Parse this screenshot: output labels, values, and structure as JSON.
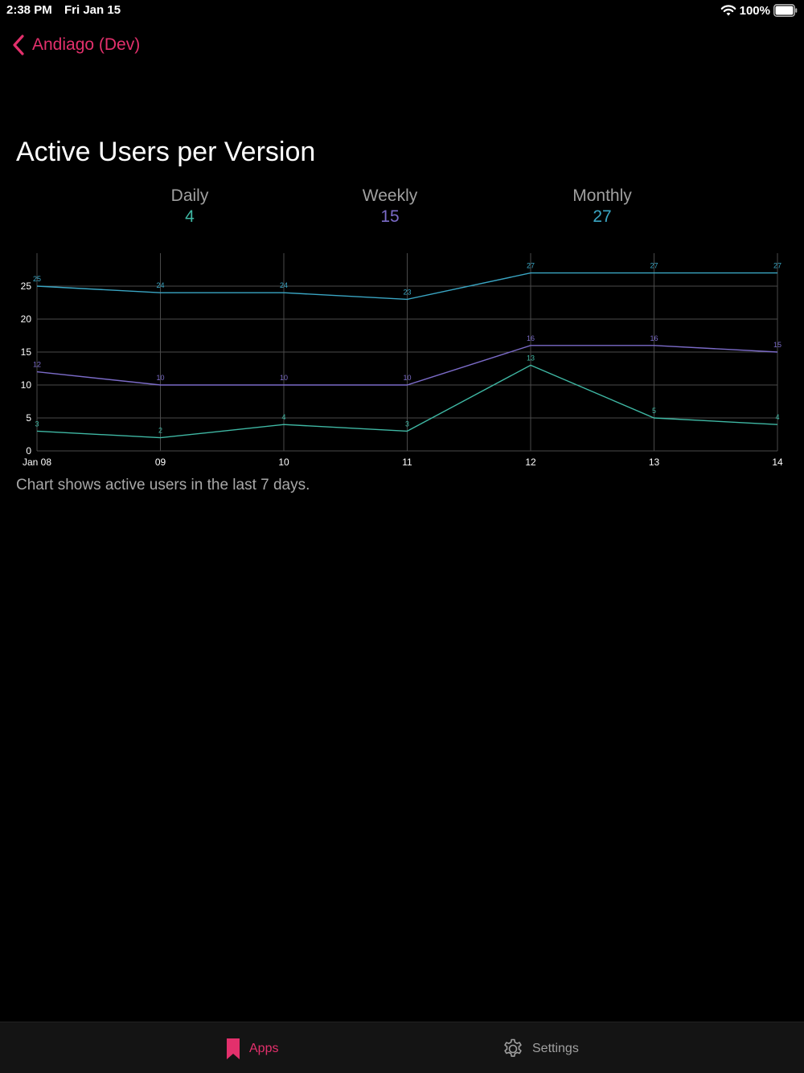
{
  "status_bar": {
    "time": "2:38 PM",
    "date": "Fri Jan 15",
    "battery": "100%",
    "icons": [
      "wifi-icon",
      "battery-icon"
    ]
  },
  "nav": {
    "back_label": "Andiago (Dev)",
    "back_icon": "chevron-left-icon"
  },
  "page": {
    "title": "Active Users per Version",
    "caption": "Chart shows active users in the last 7 days."
  },
  "stats": {
    "daily": {
      "label": "Daily",
      "value": "4"
    },
    "weekly": {
      "label": "Weekly",
      "value": "15"
    },
    "monthly": {
      "label": "Monthly",
      "value": "27"
    }
  },
  "colors": {
    "accent": "#e3306c",
    "daily": "#3fb8a4",
    "weekly": "#7b6bc8",
    "monthly": "#3aa6c4",
    "grid": "#4a4a4a"
  },
  "chart_data": {
    "type": "line",
    "categories": [
      "Jan 08",
      "09",
      "10",
      "11",
      "12",
      "13",
      "14"
    ],
    "yticks": [
      "0",
      "5",
      "10",
      "15",
      "20",
      "25"
    ],
    "ylim": [
      0,
      30
    ],
    "grid": true,
    "series": [
      {
        "key": "monthly",
        "values": [
          25,
          24,
          24,
          23,
          27,
          27,
          27
        ]
      },
      {
        "key": "weekly",
        "values": [
          12,
          10,
          10,
          10,
          16,
          16,
          15
        ]
      },
      {
        "key": "daily",
        "values": [
          3,
          2,
          4,
          3,
          13,
          5,
          4
        ]
      }
    ]
  },
  "tab_bar": {
    "apps": {
      "label": "Apps",
      "icon": "bookmark-icon"
    },
    "settings": {
      "label": "Settings",
      "icon": "gear-icon"
    }
  }
}
